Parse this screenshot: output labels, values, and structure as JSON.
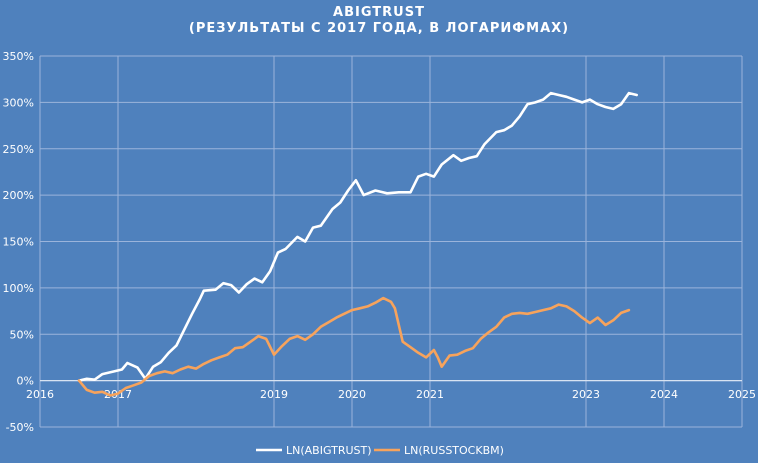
{
  "colors": {
    "background": "#4f81bd",
    "gridline": "#9bb4db",
    "axis": "#d8e3f2",
    "series_1": "#ffffff",
    "series_2": "#f7a35c"
  },
  "chart_data": {
    "type": "line",
    "title": "ABIGTRUST",
    "subtitle": "(РЕЗУЛЬТАТЫ С 2017 ГОДА, В ЛОГАРИФМАХ)",
    "xlabel": "",
    "ylabel": "",
    "xlim": [
      2016,
      2025
    ],
    "ylim": [
      -50,
      350
    ],
    "x_ticks": [
      2016,
      2017,
      2019,
      2020,
      2021,
      2023,
      2024,
      2025
    ],
    "x_tick_labels": [
      "2016",
      "2017",
      "2019",
      "2020",
      "2021",
      "2023",
      "2024",
      "2025"
    ],
    "y_ticks": [
      -50,
      0,
      50,
      100,
      150,
      200,
      250,
      300,
      350
    ],
    "y_tick_labels": [
      "-50%",
      "0%",
      "50%",
      "100%",
      "150%",
      "200%",
      "250%",
      "300%",
      "350%"
    ],
    "grid": true,
    "legend_position": "bottom",
    "series": [
      {
        "name": "LN(ABIGTRUST)",
        "points": [
          [
            2016.5,
            0
          ],
          [
            2016.6,
            2
          ],
          [
            2016.7,
            1
          ],
          [
            2016.8,
            7
          ],
          [
            2016.95,
            10
          ],
          [
            2017.05,
            12
          ],
          [
            2017.12,
            19
          ],
          [
            2017.25,
            14
          ],
          [
            2017.35,
            2
          ],
          [
            2017.45,
            15
          ],
          [
            2017.55,
            20
          ],
          [
            2017.65,
            30
          ],
          [
            2017.75,
            38
          ],
          [
            2017.85,
            55
          ],
          [
            2017.95,
            72
          ],
          [
            2018.05,
            88
          ],
          [
            2018.1,
            97
          ],
          [
            2018.25,
            98
          ],
          [
            2018.35,
            105
          ],
          [
            2018.45,
            103
          ],
          [
            2018.55,
            95
          ],
          [
            2018.65,
            104
          ],
          [
            2018.75,
            110
          ],
          [
            2018.85,
            106
          ],
          [
            2018.95,
            118
          ],
          [
            2019.05,
            138
          ],
          [
            2019.15,
            142
          ],
          [
            2019.3,
            155
          ],
          [
            2019.4,
            150
          ],
          [
            2019.5,
            165
          ],
          [
            2019.6,
            167
          ],
          [
            2019.75,
            185
          ],
          [
            2019.85,
            192
          ],
          [
            2019.95,
            205
          ],
          [
            2020.05,
            216
          ],
          [
            2020.15,
            200
          ],
          [
            2020.3,
            205
          ],
          [
            2020.45,
            202
          ],
          [
            2020.6,
            203
          ],
          [
            2020.75,
            203
          ],
          [
            2020.85,
            220
          ],
          [
            2020.95,
            223
          ],
          [
            2021.05,
            220
          ],
          [
            2021.15,
            233
          ],
          [
            2021.3,
            243
          ],
          [
            2021.4,
            237
          ],
          [
            2021.5,
            240
          ],
          [
            2021.6,
            242
          ],
          [
            2021.7,
            255
          ],
          [
            2021.85,
            268
          ],
          [
            2021.95,
            270
          ],
          [
            2022.05,
            275
          ],
          [
            2022.15,
            285
          ],
          [
            2022.25,
            298
          ],
          [
            2022.35,
            300
          ],
          [
            2022.45,
            303
          ],
          [
            2022.55,
            310
          ],
          [
            2022.65,
            308
          ],
          [
            2022.75,
            306
          ],
          [
            2022.85,
            303
          ],
          [
            2022.95,
            300
          ],
          [
            2023.05,
            303
          ],
          [
            2023.15,
            298
          ],
          [
            2023.25,
            295
          ],
          [
            2023.35,
            293
          ],
          [
            2023.45,
            298
          ],
          [
            2023.55,
            310
          ],
          [
            2023.65,
            308
          ]
        ]
      },
      {
        "name": "LN(RUSSTOCKBM)",
        "points": [
          [
            2016.5,
            0
          ],
          [
            2016.6,
            -10
          ],
          [
            2016.7,
            -13
          ],
          [
            2016.8,
            -12
          ],
          [
            2016.9,
            -16
          ],
          [
            2017.0,
            -14
          ],
          [
            2017.1,
            -8
          ],
          [
            2017.2,
            -5
          ],
          [
            2017.3,
            -2
          ],
          [
            2017.4,
            5
          ],
          [
            2017.5,
            8
          ],
          [
            2017.6,
            10
          ],
          [
            2017.7,
            8
          ],
          [
            2017.8,
            12
          ],
          [
            2017.9,
            15
          ],
          [
            2018.0,
            13
          ],
          [
            2018.1,
            18
          ],
          [
            2018.2,
            22
          ],
          [
            2018.3,
            25
          ],
          [
            2018.4,
            28
          ],
          [
            2018.5,
            35
          ],
          [
            2018.6,
            36
          ],
          [
            2018.7,
            42
          ],
          [
            2018.8,
            48
          ],
          [
            2018.9,
            45
          ],
          [
            2019.0,
            28
          ],
          [
            2019.1,
            37
          ],
          [
            2019.2,
            45
          ],
          [
            2019.3,
            48
          ],
          [
            2019.4,
            44
          ],
          [
            2019.5,
            50
          ],
          [
            2019.6,
            58
          ],
          [
            2019.7,
            63
          ],
          [
            2019.8,
            68
          ],
          [
            2019.9,
            72
          ],
          [
            2020.0,
            76
          ],
          [
            2020.1,
            78
          ],
          [
            2020.2,
            80
          ],
          [
            2020.3,
            84
          ],
          [
            2020.4,
            89
          ],
          [
            2020.5,
            85
          ],
          [
            2020.55,
            78
          ],
          [
            2020.65,
            42
          ],
          [
            2020.75,
            36
          ],
          [
            2020.85,
            30
          ],
          [
            2020.95,
            25
          ],
          [
            2021.05,
            33
          ],
          [
            2021.1,
            25
          ],
          [
            2021.15,
            15
          ],
          [
            2021.25,
            27
          ],
          [
            2021.35,
            28
          ],
          [
            2021.45,
            32
          ],
          [
            2021.55,
            35
          ],
          [
            2021.65,
            45
          ],
          [
            2021.75,
            52
          ],
          [
            2021.85,
            58
          ],
          [
            2021.95,
            68
          ],
          [
            2022.05,
            72
          ],
          [
            2022.15,
            73
          ],
          [
            2022.25,
            72
          ],
          [
            2022.35,
            74
          ],
          [
            2022.45,
            76
          ],
          [
            2022.55,
            78
          ],
          [
            2022.65,
            82
          ],
          [
            2022.75,
            80
          ],
          [
            2022.85,
            75
          ],
          [
            2022.95,
            68
          ],
          [
            2023.05,
            62
          ],
          [
            2023.15,
            68
          ],
          [
            2023.25,
            60
          ],
          [
            2023.35,
            65
          ],
          [
            2023.45,
            73
          ],
          [
            2023.55,
            76
          ]
        ]
      }
    ]
  }
}
